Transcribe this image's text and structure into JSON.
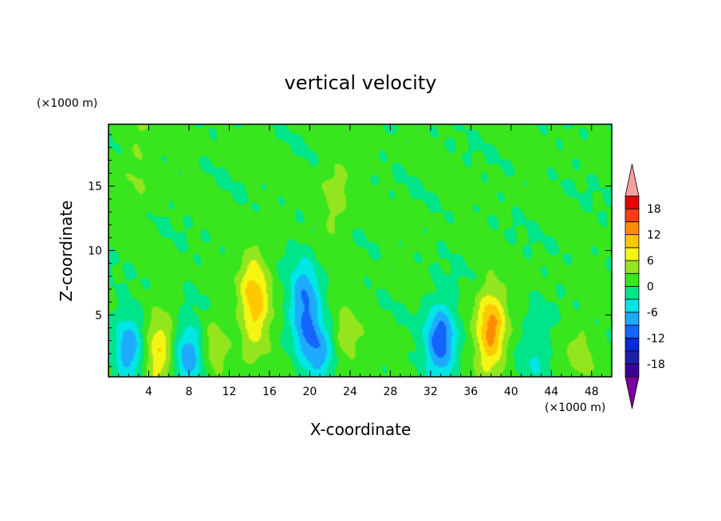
{
  "chart_data": {
    "type": "heatmap",
    "title": "vertical velocity",
    "xlabel": "X-coordinate",
    "ylabel": "Z-coordinate",
    "x_units": "(×1000 m)",
    "y_units": "(×1000 m)",
    "xlim": [
      0,
      50
    ],
    "ylim": [
      0.2,
      19.8
    ],
    "x_ticks": [
      "4",
      "8",
      "12",
      "16",
      "20",
      "24",
      "28",
      "32",
      "36",
      "40",
      "44",
      "48"
    ],
    "x_tick_values": [
      4,
      8,
      12,
      16,
      20,
      24,
      28,
      32,
      36,
      40,
      44,
      48
    ],
    "y_ticks": [
      "5",
      "10",
      "15"
    ],
    "y_tick_values": [
      5,
      10,
      15
    ],
    "colorbar": {
      "levels": [
        -21,
        -18,
        -15,
        -12,
        -9,
        -6,
        -3,
        0,
        3,
        6,
        9,
        12,
        15,
        18,
        21
      ],
      "labels": [
        "18",
        "12",
        "6",
        "0",
        "-6",
        "-12",
        "-18"
      ],
      "label_values": [
        18,
        12,
        6,
        0,
        -6,
        -12,
        -18
      ],
      "colors": [
        "#7a00a0",
        "#3c0098",
        "#1e1ea8",
        "#0a28d8",
        "#1464ff",
        "#1eaaff",
        "#00e6e6",
        "#00e48a",
        "#39e61d",
        "#93e61d",
        "#f5f514",
        "#ffc800",
        "#ff8c00",
        "#ff3c14",
        "#e60000",
        "#f5a0a0"
      ],
      "extend": "both"
    },
    "features": [
      {
        "x": 2.0,
        "z": 2.2,
        "value": -9
      },
      {
        "x": 5.0,
        "z": 2.2,
        "value": 9
      },
      {
        "x": 8.0,
        "z": 2.0,
        "value": -9
      },
      {
        "x": 10.5,
        "z": 2.5,
        "value": 4
      },
      {
        "x": 14.5,
        "z": 6.0,
        "value": 10
      },
      {
        "x": 19.5,
        "z": 5.5,
        "value": -10
      },
      {
        "x": 21.0,
        "z": 2.0,
        "value": -7
      },
      {
        "x": 23.5,
        "z": 3.0,
        "value": 4
      },
      {
        "x": 33.0,
        "z": 3.0,
        "value": -12
      },
      {
        "x": 38.0,
        "z": 3.8,
        "value": 13
      },
      {
        "x": 42.5,
        "z": 2.5,
        "value": -4
      },
      {
        "x": 47.0,
        "z": 2.0,
        "value": 4
      },
      {
        "x": 22.5,
        "z": 14.0,
        "value": 4
      },
      {
        "x": 3.0,
        "z": 17.0,
        "value": 3
      }
    ]
  }
}
